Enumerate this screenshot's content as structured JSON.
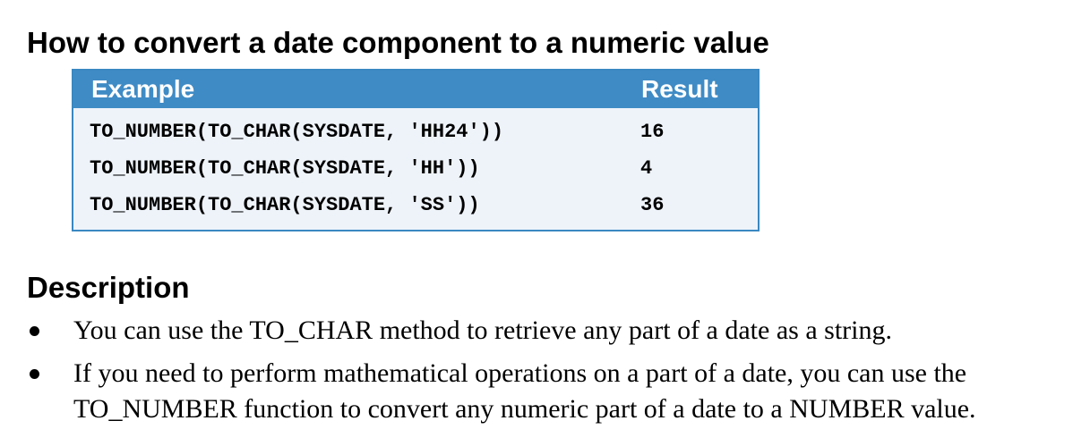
{
  "heading": "How to convert a date component to a numeric value",
  "table": {
    "headers": {
      "example": "Example",
      "result": "Result"
    },
    "rows": [
      {
        "example": "TO_NUMBER(TO_CHAR(SYSDATE, 'HH24'))",
        "result": "16"
      },
      {
        "example": "TO_NUMBER(TO_CHAR(SYSDATE, 'HH'))",
        "result": "4"
      },
      {
        "example": "TO_NUMBER(TO_CHAR(SYSDATE, 'SS'))",
        "result": "36"
      }
    ],
    "colors": {
      "header_bg": "#3f8bc5",
      "border": "#3a88c2",
      "body_bg": "#eef3fa"
    }
  },
  "description": {
    "heading": "Description",
    "bullets": [
      "You can use the TO_CHAR method to retrieve any part of a date as a string.",
      "If you need to perform mathematical operations on a part of a date, you can use the TO_NUMBER function to convert any numeric part of a date to a NUMBER value."
    ]
  }
}
